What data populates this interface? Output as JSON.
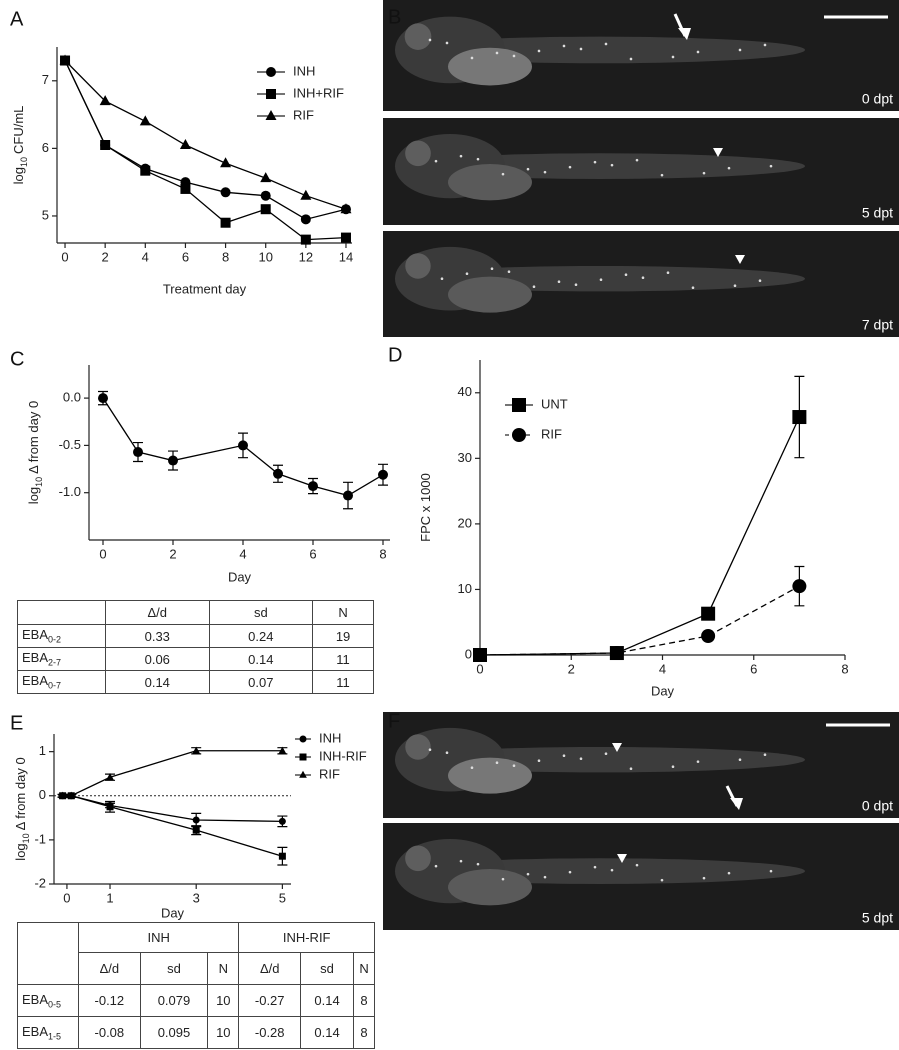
{
  "panel_labels": [
    "A",
    "B",
    "C",
    "D",
    "E",
    "F"
  ],
  "chart_data": [
    {
      "type": "line",
      "xlabel": "Treatment day",
      "ylabel": [
        "log",
        "10",
        "CFU/mL"
      ],
      "x": [
        0,
        2,
        4,
        6,
        8,
        10,
        12,
        14
      ],
      "xlim": [
        -0.4,
        14.3
      ],
      "ylim": [
        4.6,
        7.5
      ],
      "xticks": [
        0,
        2,
        4,
        6,
        8,
        10,
        12,
        14
      ],
      "yticks": [
        5,
        6,
        7
      ],
      "legend": "upper right",
      "series": [
        {
          "name": "INH",
          "marker": "circle",
          "color": "#000000",
          "values": [
            7.3,
            6.05,
            5.7,
            5.5,
            5.35,
            5.3,
            4.95,
            5.1
          ]
        },
        {
          "name": "INH+RIF",
          "marker": "square",
          "color": "#000000",
          "values": [
            7.3,
            6.05,
            5.67,
            5.4,
            4.9,
            5.1,
            4.65,
            4.68
          ]
        },
        {
          "name": "RIF",
          "marker": "triangle",
          "color": "#000000",
          "values": [
            7.3,
            6.7,
            6.4,
            6.05,
            5.78,
            5.56,
            5.3,
            5.1
          ]
        }
      ]
    },
    {
      "type": "line",
      "xlabel": "Day",
      "ylabel": [
        "log",
        "10",
        "Δ from day 0"
      ],
      "x": [
        0,
        1,
        2,
        4,
        5,
        6,
        7,
        8
      ],
      "xlim": [
        -0.4,
        8.2
      ],
      "ylim": [
        -1.5,
        0.35
      ],
      "xticks": [
        0,
        2,
        4,
        6,
        8
      ],
      "yticks": [
        {
          "value": 0,
          "label": "0.0"
        },
        {
          "value": -0.5,
          "label": "-0.5"
        },
        {
          "value": -1,
          "label": "-1.0"
        }
      ],
      "series": [
        {
          "marker": "circle",
          "color": "#000000",
          "values": [
            0,
            -0.57,
            -0.66,
            -0.5,
            -0.8,
            -0.93,
            -1.03,
            -0.81
          ],
          "errors": [
            0.07,
            0.1,
            0.1,
            0.13,
            0.09,
            0.08,
            0.14,
            0.11
          ]
        }
      ]
    },
    {
      "type": "line",
      "xlabel": "Day",
      "ylabel": [
        "FPC x 1000"
      ],
      "x": [
        0,
        3,
        5,
        7
      ],
      "xlim": [
        0,
        8
      ],
      "ylim": [
        0,
        45
      ],
      "xticks": [
        0,
        2,
        4,
        6,
        8
      ],
      "yticks": [
        0,
        10,
        20,
        30,
        40
      ],
      "legend": "upper left",
      "series": [
        {
          "name": "UNT",
          "marker": "square",
          "color": "#000000",
          "values": [
            0,
            0.3,
            6.3,
            36.3
          ],
          "errors": [
            0,
            0.3,
            0.9,
            6.2
          ]
        },
        {
          "name": "RIF",
          "marker": "circle",
          "color": "#000000",
          "dash": true,
          "values": [
            0,
            0.3,
            2.9,
            10.5
          ],
          "errors": [
            0,
            0.2,
            0.3,
            3
          ]
        }
      ]
    },
    {
      "type": "line",
      "xlabel": "Day",
      "ylabel": [
        "log",
        "10",
        "Δ from day 0"
      ],
      "x": [
        -0.1,
        0.1,
        1,
        3,
        5
      ],
      "xlim": [
        -0.3,
        5.2
      ],
      "ylim": [
        -2,
        1.4
      ],
      "xticks": [
        0,
        1,
        3,
        5
      ],
      "yticks": [
        1,
        0,
        -1,
        -2
      ],
      "zero_line": true,
      "legend": "outside right",
      "series": [
        {
          "name": "INH",
          "marker": "circle",
          "color": "#000000",
          "values": [
            0,
            0,
            -0.22,
            -0.55,
            -0.58
          ],
          "errors": [
            0.03,
            0.03,
            0.05,
            0.15,
            0.12
          ]
        },
        {
          "name": "INH-RIF",
          "marker": "square",
          "color": "#000000",
          "values": [
            0,
            0,
            -0.25,
            -0.78,
            -1.37
          ],
          "errors": [
            0.03,
            0.03,
            0.12,
            0.1,
            0.2
          ]
        },
        {
          "name": "RIF",
          "marker": "triangle",
          "color": "#000000",
          "values": [
            0,
            0,
            0.42,
            1.02,
            1.02
          ],
          "errors": [
            0.03,
            0.03,
            0.07,
            0.07,
            0.07
          ]
        }
      ]
    }
  ],
  "images": {
    "B": [
      "0 dpt",
      "5 dpt",
      "7 dpt"
    ],
    "F": [
      "0 dpt",
      "5 dpt"
    ]
  },
  "tables": {
    "C": {
      "columns": [
        "Δ/d",
        "sd",
        "N"
      ],
      "rows": [
        {
          "label": "EBA",
          "sub": "0-2",
          "values": [
            0.33,
            0.24,
            19
          ]
        },
        {
          "label": "EBA",
          "sub": "2-7",
          "values": [
            0.06,
            0.14,
            11
          ]
        },
        {
          "label": "EBA",
          "sub": "0-7",
          "values": [
            0.14,
            0.07,
            11
          ]
        }
      ]
    },
    "E": {
      "groups": [
        "INH",
        "INH-RIF"
      ],
      "columns": [
        "Δ/d",
        "sd",
        "N",
        "Δ/d",
        "sd",
        "N"
      ],
      "rows": [
        {
          "label": "EBA",
          "sub": "0-5",
          "values": [
            -0.12,
            0.079,
            10,
            -0.27,
            0.14,
            8
          ]
        },
        {
          "label": "EBA",
          "sub": "1-5",
          "values": [
            -0.08,
            0.095,
            10,
            -0.28,
            0.14,
            8
          ]
        }
      ]
    }
  }
}
